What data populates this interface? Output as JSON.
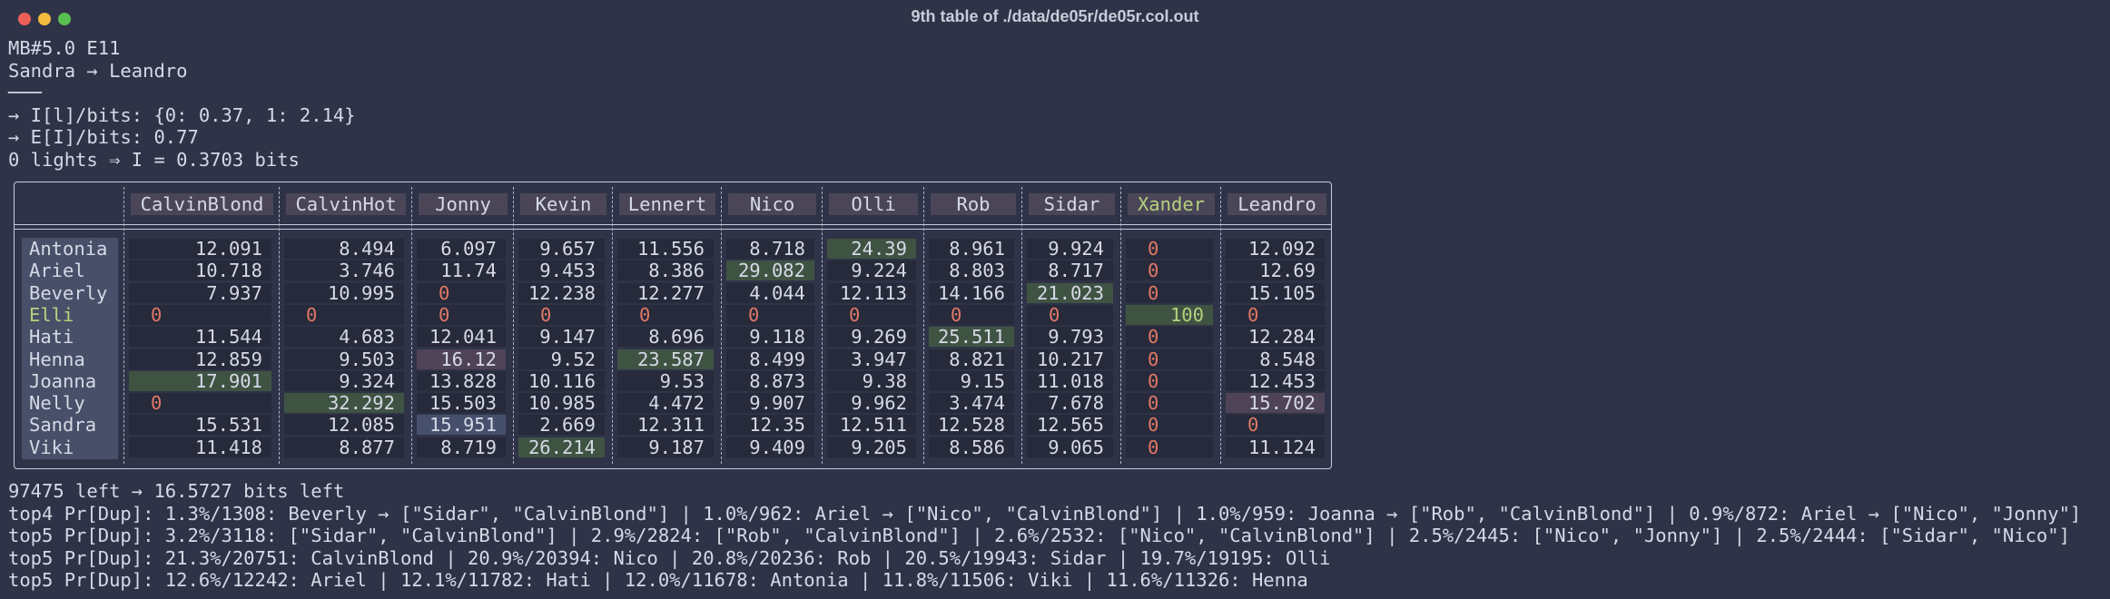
{
  "window": {
    "title": "9th table of ./data/de05r/de05r.col.out"
  },
  "header": {
    "lines": [
      "MB#5.0 E11",
      "Sandra → Leandro",
      "───",
      "→ I[l]/bits: {0: 0.37, 1: 2.14}",
      "→ E[I]/bits: 0.77",
      "0 lights ⇒ I = 0.3703 bits"
    ]
  },
  "table": {
    "columns": [
      "CalvinBlond",
      "CalvinHot",
      "Jonny",
      "Kevin",
      "Lennert",
      "Nico",
      "Olli",
      "Rob",
      "Sidar",
      "Xander",
      "Leandro"
    ],
    "rows": [
      {
        "label": "Antonia",
        "cells": [
          12.091,
          8.494,
          6.097,
          9.657,
          11.556,
          8.718,
          24.39,
          8.961,
          9.924,
          0,
          12.092
        ]
      },
      {
        "label": "Ariel",
        "cells": [
          10.718,
          3.746,
          11.74,
          9.453,
          8.386,
          29.082,
          9.224,
          8.803,
          8.717,
          0,
          12.69
        ]
      },
      {
        "label": "Beverly",
        "cells": [
          7.937,
          10.995,
          0,
          12.238,
          12.277,
          4.044,
          12.113,
          14.166,
          21.023,
          0,
          15.105
        ]
      },
      {
        "label": "Elli",
        "cells": [
          0,
          0,
          0,
          0,
          0,
          0,
          0,
          0,
          0,
          100,
          0
        ]
      },
      {
        "label": "Hati",
        "cells": [
          11.544,
          4.683,
          12.041,
          9.147,
          8.696,
          9.118,
          9.269,
          25.511,
          9.793,
          0,
          12.284
        ]
      },
      {
        "label": "Henna",
        "cells": [
          12.859,
          9.503,
          16.12,
          9.52,
          23.587,
          8.499,
          3.947,
          8.821,
          10.217,
          0,
          8.548
        ]
      },
      {
        "label": "Joanna",
        "cells": [
          17.901,
          9.324,
          13.828,
          10.116,
          9.53,
          8.873,
          9.38,
          9.15,
          11.018,
          0,
          12.453
        ]
      },
      {
        "label": "Nelly",
        "cells": [
          0,
          32.292,
          15.503,
          10.985,
          4.472,
          9.907,
          9.962,
          3.474,
          7.678,
          0,
          15.702
        ]
      },
      {
        "label": "Sandra",
        "cells": [
          15.531,
          12.085,
          15.951,
          2.669,
          12.311,
          12.35,
          12.511,
          12.528,
          12.565,
          0,
          0
        ]
      },
      {
        "label": "Viki",
        "cells": [
          11.418,
          8.877,
          8.719,
          26.214,
          9.187,
          9.409,
          9.205,
          8.586,
          9.065,
          0,
          11.124
        ]
      }
    ]
  },
  "footer": {
    "lines": [
      "97475 left → 16.5727 bits left",
      "top4 Pr[Dup]: 1.3%/1308: Beverly → [\"Sidar\", \"CalvinBlond\"] | 1.0%/962: Ariel → [\"Nico\", \"CalvinBlond\"] | 1.0%/959: Joanna → [\"Rob\", \"CalvinBlond\"] | 0.9%/872: Ariel → [\"Nico\", \"Jonny\"]",
      "top5 Pr[Dup]: 3.2%/3118: [\"Sidar\", \"CalvinBlond\"] | 2.9%/2824: [\"Rob\", \"CalvinBlond\"] | 2.6%/2532: [\"Nico\", \"CalvinBlond\"] | 2.5%/2445: [\"Nico\", \"Jonny\"] | 2.5%/2444: [\"Sidar\", \"Nico\"]",
      "top5 Pr[Dup]: 21.3%/20751: CalvinBlond | 20.9%/20394: Nico | 20.8%/20236: Rob | 20.5%/19943: Sidar | 19.7%/19195: Olli",
      "top5 Pr[Dup]: 12.6%/12242: Ariel | 12.1%/11782: Hati | 12.0%/11678: Antonia | 11.8%/11506: Viki | 11.6%/11326: Henna"
    ]
  }
}
